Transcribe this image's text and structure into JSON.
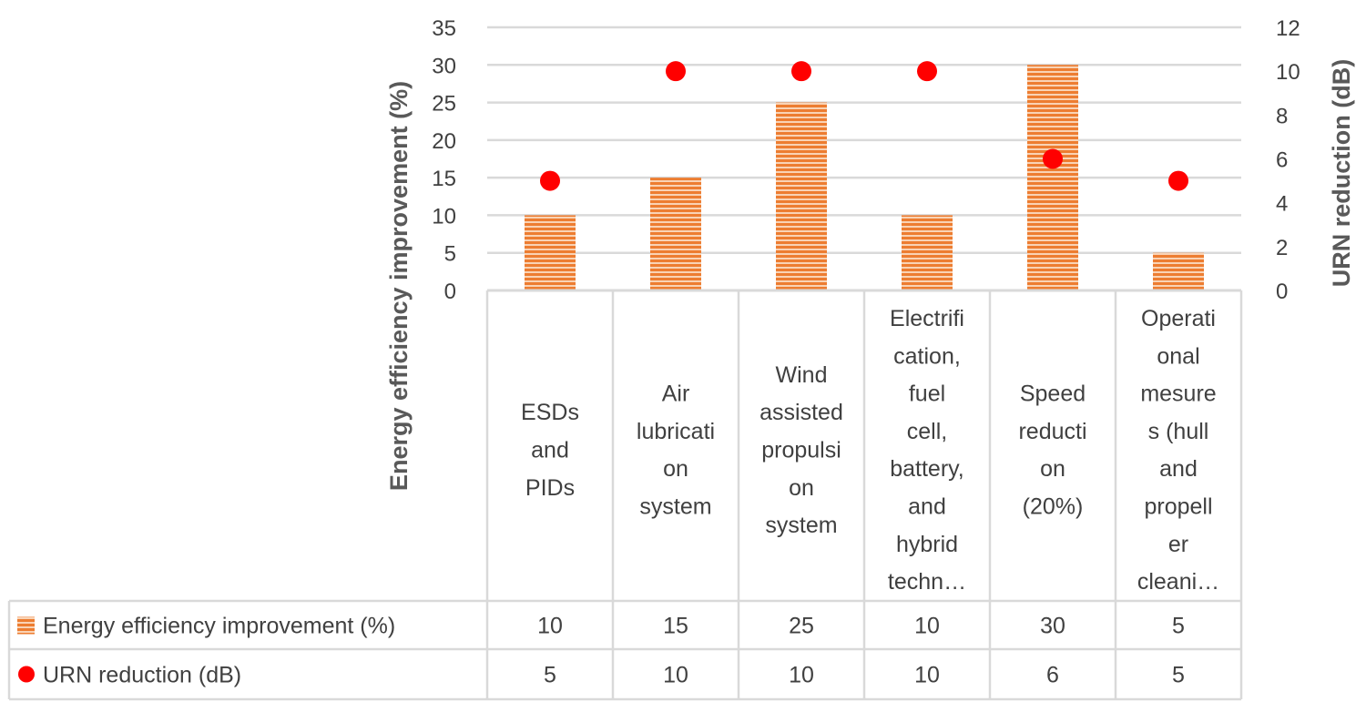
{
  "chart_data": {
    "type": "bar",
    "title": "",
    "categories": [
      [
        "ESDs",
        "and",
        "PIDs"
      ],
      [
        "Air",
        "lubricati",
        "on",
        "system"
      ],
      [
        "Wind",
        "assisted",
        "propulsi",
        "on",
        "system"
      ],
      [
        "Electrifi",
        "cation,",
        "fuel",
        "cell,",
        "battery,",
        "and",
        "hybrid",
        "techn…"
      ],
      [
        "Speed",
        "reducti",
        "on",
        "(20%)"
      ],
      [
        "Operati",
        "onal",
        "mesure",
        "s (hull",
        "and",
        "propell",
        "er",
        "cleani…"
      ]
    ],
    "series": [
      {
        "name": "Energy efficiency improvement (%)",
        "type": "bar",
        "axis": "left",
        "values": [
          10,
          15,
          25,
          10,
          30,
          5
        ],
        "color": "#ED7D31",
        "pattern": "horizontal-stripes"
      },
      {
        "name": "URN reduction (dB)",
        "type": "scatter",
        "axis": "right",
        "values": [
          5,
          10,
          10,
          10,
          6,
          5
        ],
        "color": "#FF0000"
      }
    ],
    "ylabel": "Energy efficiency improvement (%)",
    "ylabel_right": "URN reduction (dB)",
    "ylim": [
      0,
      35
    ],
    "yticks": [
      0,
      5,
      10,
      15,
      20,
      25,
      30,
      35
    ],
    "ylim_right": [
      0,
      12
    ],
    "yticks_right": [
      0,
      2,
      4,
      6,
      8,
      10,
      12
    ],
    "grid": true,
    "legend": "data-table",
    "data_table": true
  }
}
